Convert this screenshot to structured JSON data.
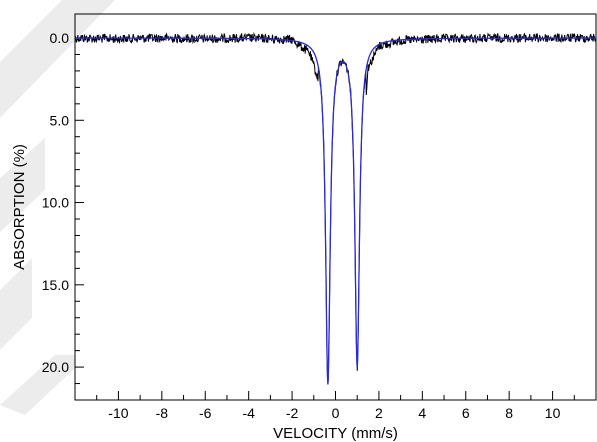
{
  "chart_data": {
    "type": "line",
    "title": "",
    "xlabel": "VELOCITY (mm/s)",
    "ylabel": "ABSORPTION (%)",
    "xlim": [
      -12,
      12
    ],
    "ylim": [
      0.0,
      22.0
    ],
    "y_axis_inverted": true,
    "grid": false,
    "legend": "none",
    "x_ticks": [
      "-10",
      "-8",
      "-6",
      "-4",
      "-2",
      "0",
      "2",
      "4",
      "6",
      "8",
      "10"
    ],
    "y_ticks": [
      "0.0",
      "5.0",
      "10.0",
      "15.0",
      "20.0"
    ],
    "series": [
      {
        "role": "measured data",
        "color": "#000000",
        "x": [
          -12,
          -10,
          -8,
          -6,
          -4,
          -2,
          -1.2,
          -0.8,
          -0.5,
          -0.35,
          -0.2,
          0.0,
          0.2,
          0.4,
          0.65,
          0.85,
          1.0,
          1.15,
          1.5,
          2.0,
          3.0,
          5.0,
          8.0,
          12
        ],
        "y": [
          0.0,
          0.05,
          0.0,
          0.05,
          0.0,
          0.1,
          0.9,
          2.5,
          9.0,
          20.8,
          10.0,
          2.0,
          1.3,
          1.6,
          3.0,
          9.0,
          19.8,
          8.0,
          1.8,
          0.5,
          0.15,
          0.05,
          0.0,
          0.0
        ]
      },
      {
        "role": "fit",
        "color": "#2b2bd6",
        "peaks": [
          {
            "center": -0.35,
            "depth": 20.8,
            "hwhm": 0.13
          },
          {
            "center": 1.0,
            "depth": 19.8,
            "hwhm": 0.13
          }
        ]
      }
    ]
  }
}
